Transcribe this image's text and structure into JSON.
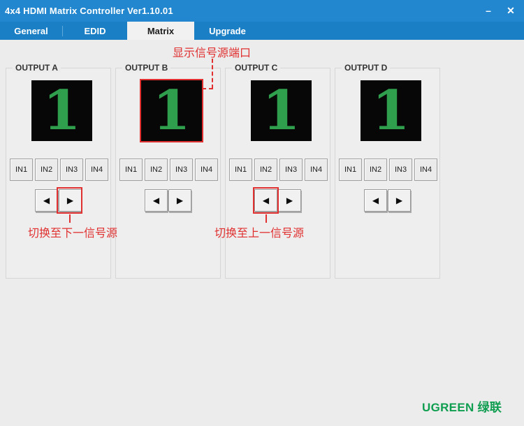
{
  "window": {
    "title": "4x4 HDMI Matrix Controller Ver1.10.01",
    "controls": {
      "minimize": "–",
      "close": "✕"
    }
  },
  "tabs": [
    {
      "label": "General",
      "selected": false
    },
    {
      "label": "EDID",
      "selected": false
    },
    {
      "label": "Matrix",
      "selected": true
    },
    {
      "label": "Upgrade",
      "selected": false
    }
  ],
  "icons": {
    "prev_icon": "◀",
    "next_icon": "▶"
  },
  "outputs": [
    {
      "label": "OUTPUT A",
      "source": "1",
      "inputs": [
        "IN1",
        "IN2",
        "IN3",
        "IN4"
      ]
    },
    {
      "label": "OUTPUT B",
      "source": "1",
      "inputs": [
        "IN1",
        "IN2",
        "IN3",
        "IN4"
      ]
    },
    {
      "label": "OUTPUT C",
      "source": "1",
      "inputs": [
        "IN1",
        "IN2",
        "IN3",
        "IN4"
      ]
    },
    {
      "label": "OUTPUT D",
      "source": "1",
      "inputs": [
        "IN1",
        "IN2",
        "IN3",
        "IN4"
      ]
    }
  ],
  "annotations": {
    "display_note": "显示信号源端口",
    "next_note": "切换至下一信号源",
    "prev_note": "切换至上一信号源",
    "accent_color": "#e03030"
  },
  "footer": {
    "brand": "UGREEN 绿联",
    "brand_color": "#0f9d50"
  },
  "colors": {
    "titlebar": "#2287ce",
    "tabbar": "#1a7fc4",
    "selected_tab_bg": "#f1f1f1",
    "content_bg": "#ececec",
    "display_bg": "#070707",
    "digit_green": "#2f9f4d"
  }
}
